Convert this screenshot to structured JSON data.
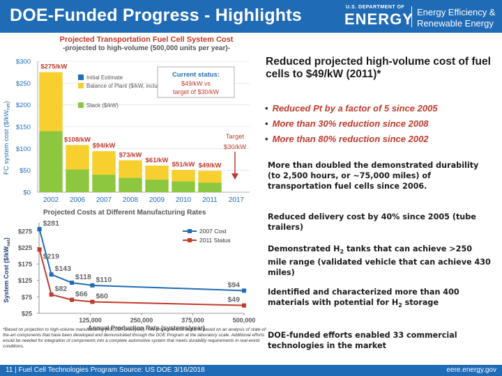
{
  "header": {
    "title": "DOE-Funded Progress - Highlights",
    "doe_small": "U.S. DEPARTMENT OF",
    "doe_big": "ENERGY",
    "ee_line1": "Energy Efficiency &",
    "ee_line2": "Renewable Energy"
  },
  "right": {
    "heading": "Reduced projected high-volume cost of fuel cells to $49/kW (2011)*",
    "bullets": [
      "Reduced Pt by a factor of 5 since 2005",
      "More than 30% reduction since 2008",
      "More than 80% reduction since 2002"
    ],
    "para1": "More than doubled the demonstrated durability (to 2,500 hours, or ~75,000 miles) of transportation fuel cells since 2006.",
    "para2": "Reduced delivery cost by 40% since 2005 (tube trailers)",
    "para3_a": "Demonstrated H",
    "para3_sub": "2",
    "para3_b": " tanks that can achieve >250 mile range (validated vehicle that can achieve 430 miles)",
    "para4_a": "Identified and characterized more than 400 materials with potential for H",
    "para4_sub": "2",
    "para4_b": " storage",
    "para5": "DOE-funded efforts enabled 33 commercial technologies in the market"
  },
  "footnote": "*Based on projection to high-volume manufacturing (500,000 units/year). The projected cost status is based on an analysis of state-of-the-art components that have been developed and demonstrated through the DOE Program at the laboratory scale. Additional efforts would be needed for integration of components into a complete automotive system that meets durability requirements in real-world conditions.",
  "footer": {
    "left": "11 | Fuel Cell Technologies Program Source: US DOE 3/16/2018",
    "right": "eere.energy.gov"
  },
  "chart_data": [
    {
      "type": "bar",
      "title": "Projected Transportation Fuel Cell System Cost",
      "subtitle": "-projected to high-volume (500,000 units per year)-",
      "ylabel": "FC system cost ($/kW",
      "ylabel_sub": "net",
      "ylabel_end": ")",
      "ylim": [
        0,
        300
      ],
      "yticks": [
        "$0",
        "$50",
        "$100",
        "$150",
        "$200",
        "$250",
        "$300"
      ],
      "categories": [
        "2002",
        "2006",
        "2007",
        "2008",
        "2009",
        "2010",
        "2011",
        "2017"
      ],
      "series": [
        {
          "name": "Stack ($/kW)",
          "color": "#8dc63f",
          "values": [
            140,
            52,
            40,
            33,
            29,
            25,
            22,
            0
          ]
        },
        {
          "name": "Balance of Plant ($/kW, includes assembly & testing)",
          "color": "#f7cf2e",
          "values": [
            135,
            56,
            54,
            40,
            32,
            26,
            27,
            0
          ]
        },
        {
          "name": "Initial Estimate",
          "color": "#1f6bb5",
          "values": [
            0,
            0,
            0,
            0,
            0,
            0,
            0,
            0
          ]
        }
      ],
      "bar_labels": [
        "$275/kW",
        "$108/kW",
        "$94/kW",
        "$73/kW",
        "$61/kW",
        "$51/kW",
        "$49/kW",
        ""
      ],
      "callout_title": "Current status:",
      "callout_line1": "$49/kW vs",
      "callout_line2": "target of $30/kW",
      "target_label_1": "Target",
      "target_label_2": "$30/kW"
    },
    {
      "type": "line",
      "title": "Projected Costs at Different Manufacturing Rates",
      "xlabel": "Annual Production Rate (systems/year)",
      "ylabel": "System Cost ($/kW",
      "ylabel_sub": "net",
      "ylabel_end": ")",
      "xticks": [
        "125,000",
        "250,000",
        "375,000",
        "500,000"
      ],
      "yticks": [
        "$25",
        "$75",
        "$125",
        "$175",
        "$225",
        "$275"
      ],
      "ylim": [
        25,
        300
      ],
      "x": [
        1000,
        30000,
        80000,
        130000,
        500000
      ],
      "series": [
        {
          "name": "2007 Cost",
          "color": "#1f6bb5",
          "values": [
            281,
            143,
            118,
            110,
            94
          ],
          "labels": [
            "$281",
            "$143",
            "$118",
            "$110",
            "$94"
          ]
        },
        {
          "name": "2011 Status",
          "color": "#c0392b",
          "values": [
            219,
            82,
            66,
            60,
            49
          ],
          "labels": [
            "$219",
            "$82",
            "$66",
            "$60",
            "$49"
          ]
        }
      ]
    }
  ]
}
